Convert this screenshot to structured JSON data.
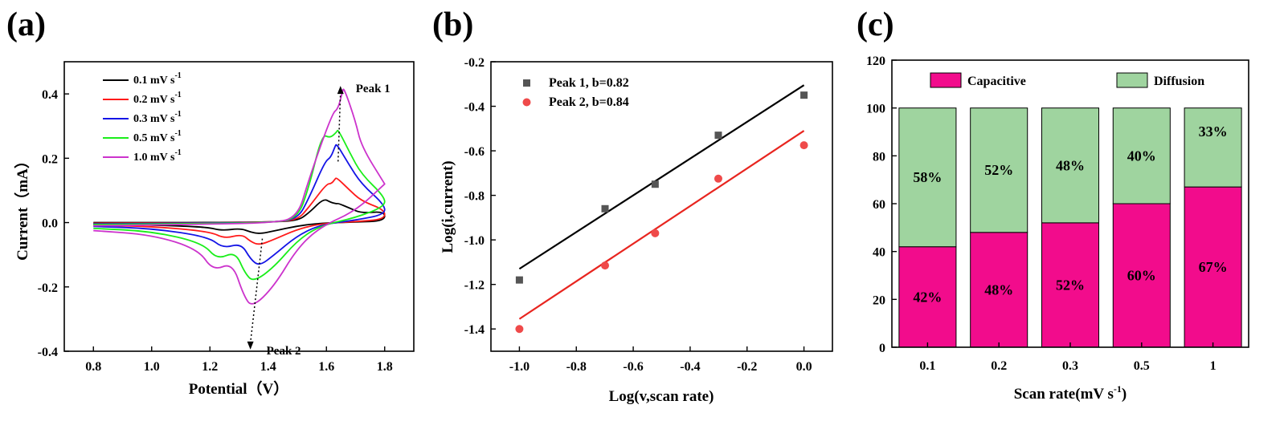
{
  "chart_data": [
    {
      "panel": "(a)",
      "type": "line",
      "xlabel": "Potential（V）",
      "ylabel": "Current（mA）",
      "xlim": [
        0.7,
        1.9
      ],
      "ylim": [
        -0.4,
        0.5
      ],
      "xticks": [
        0.8,
        1.0,
        1.2,
        1.4,
        1.6,
        1.8
      ],
      "yticks": [
        -0.4,
        -0.2,
        0.0,
        0.2,
        0.4
      ],
      "annotations": [
        {
          "text": "Peak 1",
          "x": 1.64,
          "y": 0.42,
          "direction": "up"
        },
        {
          "text": "Peak 2",
          "x": 1.35,
          "y": -0.28,
          "direction": "down"
        }
      ],
      "legend_placement": "top-left",
      "series": [
        {
          "name": "0.1 mV s",
          "sup": "-1",
          "color": "#000000",
          "anodic_peak": [
            1.64,
            0.06
          ],
          "cathodic_peak": [
            1.37,
            -0.035
          ],
          "cathodic_peak2": [
            1.24,
            -0.025
          ],
          "shoulder": [
            1.59,
            0.075
          ],
          "end": [
            1.8,
            0.005
          ],
          "start_low": -0.005,
          "start_high": 0.0
        },
        {
          "name": "0.2 mV s",
          "sup": "-1",
          "color": "#ff1a1a",
          "anodic_peak": [
            1.635,
            0.14
          ],
          "cathodic_peak": [
            1.37,
            -0.07
          ],
          "cathodic_peak2": [
            1.25,
            -0.05
          ],
          "shoulder": [
            1.6,
            0.12
          ],
          "end": [
            1.8,
            0.01
          ],
          "start_low": -0.008,
          "start_high": -0.002
        },
        {
          "name": "0.3 mV s",
          "sup": "-1",
          "color": "#1414e6",
          "anodic_peak": [
            1.635,
            0.245
          ],
          "cathodic_peak": [
            1.37,
            -0.135
          ],
          "cathodic_peak2": [
            1.245,
            -0.08
          ],
          "shoulder": [
            1.595,
            0.19
          ],
          "end": [
            1.8,
            0.025
          ],
          "start_low": -0.012,
          "start_high": -0.004
        },
        {
          "name": "0.5 mV s",
          "sup": "-1",
          "color": "#1aee1a",
          "anodic_peak": [
            1.64,
            0.29
          ],
          "cathodic_peak": [
            1.35,
            -0.185
          ],
          "cathodic_peak2": [
            1.225,
            -0.115
          ],
          "shoulder": [
            1.585,
            0.275
          ],
          "end": [
            1.8,
            0.05
          ],
          "start_low": -0.018,
          "start_high": -0.006
        },
        {
          "name": "1.0 mV s",
          "sup": "-1",
          "color": "#cc33cc",
          "anodic_peak": [
            1.66,
            0.42
          ],
          "cathodic_peak": [
            1.345,
            -0.265
          ],
          "cathodic_peak2": [
            1.21,
            -0.15
          ],
          "shoulder": [
            1.62,
            0.34
          ],
          "end": [
            1.8,
            0.12
          ],
          "start_low": -0.025,
          "start_high": -0.01
        }
      ]
    },
    {
      "panel": "(b)",
      "type": "scatter",
      "xlabel": "Log(v,scan rate)",
      "ylabel": "Log(i,current)",
      "xlim": [
        -1.1,
        0.1
      ],
      "ylim": [
        -1.5,
        -0.2
      ],
      "xticks": [
        -1.0,
        -0.8,
        -0.6,
        -0.4,
        -0.2,
        0.0
      ],
      "yticks": [
        -1.4,
        -1.2,
        -1.0,
        -0.8,
        -0.6,
        -0.4,
        -0.2
      ],
      "legend_placement": "top-left",
      "series": [
        {
          "name": "Peak 1, b=0.82",
          "color": "#000000",
          "marker_color": "#555555",
          "marker": "square",
          "x": [
            -1.0,
            -0.699,
            -0.523,
            -0.301,
            0.0
          ],
          "y": [
            -1.18,
            -0.86,
            -0.75,
            -0.53,
            -0.35
          ],
          "fit": {
            "x0": -1.0,
            "y0": -1.13,
            "x1": 0.0,
            "y1": -0.305
          }
        },
        {
          "name": "Peak 2, b=0.84",
          "color": "#e8251f",
          "marker_color": "#ef4a4a",
          "marker": "circle",
          "x": [
            -1.0,
            -0.699,
            -0.523,
            -0.301,
            0.0
          ],
          "y": [
            -1.4,
            -1.115,
            -0.97,
            -0.725,
            -0.575
          ],
          "fit": {
            "x0": -1.0,
            "y0": -1.355,
            "x1": 0.0,
            "y1": -0.51
          }
        }
      ]
    },
    {
      "panel": "(c)",
      "type": "bar",
      "stacked": true,
      "xlabel": "Scan rate(mV s",
      "xlabel_sup": "-1",
      "xlabel_end": ")",
      "ylabel": "",
      "ylim": [
        0,
        120
      ],
      "yticks": [
        0,
        20,
        40,
        60,
        80,
        100,
        120
      ],
      "categories": [
        "0.1",
        "0.2",
        "0.3",
        "0.5",
        "1"
      ],
      "legend_placement": "top",
      "series": [
        {
          "name": "Capacitive",
          "color": "#f20c8c",
          "values": [
            42,
            48,
            52,
            60,
            67
          ],
          "labels": [
            "42%",
            "48%",
            "52%",
            "60%",
            "67%"
          ]
        },
        {
          "name": "Diffusion",
          "color": "#9fd49f",
          "values": [
            58,
            52,
            48,
            40,
            33
          ],
          "labels": [
            "58%",
            "52%",
            "48%",
            "40%",
            "33%"
          ]
        }
      ]
    }
  ]
}
